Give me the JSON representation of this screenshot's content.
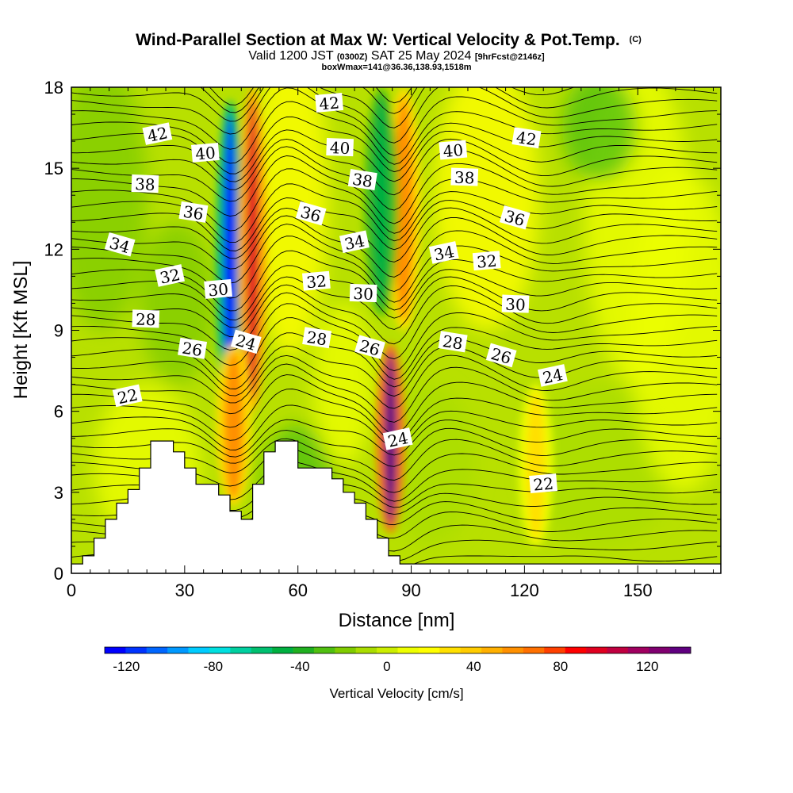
{
  "chart_data": {
    "type": "heatmap",
    "title": "Wind-Parallel Section at Max W: Vertical Velocity & Pot.Temp.",
    "title_mark": "(C)",
    "subtitle_parts": [
      "Valid 1200 JST ",
      "(0300Z)",
      " SAT 25 May 2024 ",
      "[9hrFcst@2146z]"
    ],
    "subtitle2": "boxWmax=141@36.36,138.93,1518m",
    "xlabel": "Distance [nm]",
    "ylabel": "Height [Kft MSL]",
    "xlim": [
      0,
      172
    ],
    "ylim": [
      0,
      18
    ],
    "x_ticks": [
      "0",
      "30",
      "60",
      "90",
      "120",
      "150"
    ],
    "y_ticks": [
      "0",
      "3",
      "6",
      "9",
      "12",
      "15",
      "18"
    ],
    "colorbar": {
      "label": "Vertical Velocity [cm/s]",
      "range": [
        -130,
        140
      ],
      "tick_labels": [
        "-120",
        "-80",
        "-40",
        "0",
        "40",
        "80",
        "120"
      ],
      "colors": [
        "#0000ff",
        "#0033ff",
        "#0066ff",
        "#0099ff",
        "#00ccff",
        "#00e0e0",
        "#00d0a0",
        "#00c070",
        "#00b040",
        "#20b020",
        "#50c010",
        "#80cc00",
        "#aadd00",
        "#ccee00",
        "#eeff00",
        "#ffff00",
        "#ffe000",
        "#ffcc00",
        "#ffb000",
        "#ff9000",
        "#ff7000",
        "#ff4000",
        "#ff0000",
        "#e00020",
        "#c00040",
        "#a00060",
        "#800070",
        "#600080"
      ]
    },
    "updraft_cores": [
      {
        "x": 42,
        "z_range": [
          5.5,
          17.5
        ],
        "w": -125
      },
      {
        "x": 48,
        "z_range": [
          6.0,
          18.0
        ],
        "w": 95
      },
      {
        "x": 43,
        "z_range": [
          2.5,
          8.5
        ],
        "w": 60
      },
      {
        "x": 84.5,
        "z_range": [
          1.5,
          8.5
        ],
        "w": 140
      },
      {
        "x": 88,
        "z_range": [
          9.0,
          18.0
        ],
        "w": 60
      },
      {
        "x": 82,
        "z_range": [
          9.5,
          18.0
        ],
        "w": -50
      },
      {
        "x": 123,
        "z_range": [
          1.0,
          7.0
        ],
        "w": 25
      }
    ],
    "contour_labels": [
      {
        "text": "42",
        "x": 22.8,
        "z": 16.25
      },
      {
        "text": "40",
        "x": 35.5,
        "z": 15.55
      },
      {
        "text": "38",
        "x": 19.5,
        "z": 14.4
      },
      {
        "text": "36",
        "x": 32.3,
        "z": 13.35
      },
      {
        "text": "34",
        "x": 12.8,
        "z": 12.15
      },
      {
        "text": "32",
        "x": 26.1,
        "z": 11.0
      },
      {
        "text": "30",
        "x": 38.9,
        "z": 10.5
      },
      {
        "text": "28",
        "x": 19.7,
        "z": 9.4
      },
      {
        "text": "26",
        "x": 32.0,
        "z": 8.3
      },
      {
        "text": "24",
        "x": 46.2,
        "z": 8.55
      },
      {
        "text": "22",
        "x": 14.9,
        "z": 6.55
      },
      {
        "text": "42",
        "x": 68.3,
        "z": 17.4
      },
      {
        "text": "40",
        "x": 71.1,
        "z": 15.75
      },
      {
        "text": "38",
        "x": 77.1,
        "z": 14.55
      },
      {
        "text": "36",
        "x": 63.4,
        "z": 13.3
      },
      {
        "text": "34",
        "x": 75.0,
        "z": 12.25
      },
      {
        "text": "32",
        "x": 64.9,
        "z": 10.8
      },
      {
        "text": "30",
        "x": 77.3,
        "z": 10.35
      },
      {
        "text": "28",
        "x": 65.0,
        "z": 8.7
      },
      {
        "text": "26",
        "x": 79.0,
        "z": 8.35
      },
      {
        "text": "24",
        "x": 86.5,
        "z": 4.95
      },
      {
        "text": "40",
        "x": 101.1,
        "z": 15.65
      },
      {
        "text": "38",
        "x": 104.1,
        "z": 14.65
      },
      {
        "text": "42",
        "x": 120.5,
        "z": 16.1
      },
      {
        "text": "36",
        "x": 117.4,
        "z": 13.15
      },
      {
        "text": "34",
        "x": 98.7,
        "z": 11.85
      },
      {
        "text": "32",
        "x": 110.0,
        "z": 11.55
      },
      {
        "text": "30",
        "x": 117.6,
        "z": 9.95
      },
      {
        "text": "28",
        "x": 101.0,
        "z": 8.55
      },
      {
        "text": "26",
        "x": 113.8,
        "z": 8.05
      },
      {
        "text": "24",
        "x": 127.5,
        "z": 7.3
      },
      {
        "text": "22",
        "x": 125.0,
        "z": 3.3
      }
    ],
    "terrain": [
      [
        0,
        0.35
      ],
      [
        3,
        0.35
      ],
      [
        3,
        0.65
      ],
      [
        6,
        0.65
      ],
      [
        6,
        1.3
      ],
      [
        9,
        1.3
      ],
      [
        9,
        2.0
      ],
      [
        12,
        2.0
      ],
      [
        12,
        2.6
      ],
      [
        15,
        2.6
      ],
      [
        15,
        3.1
      ],
      [
        18,
        3.1
      ],
      [
        18,
        3.9
      ],
      [
        21,
        3.9
      ],
      [
        21,
        4.9
      ],
      [
        27,
        4.9
      ],
      [
        27,
        4.5
      ],
      [
        30,
        4.5
      ],
      [
        30,
        3.9
      ],
      [
        33,
        3.9
      ],
      [
        33,
        3.3
      ],
      [
        39,
        3.3
      ],
      [
        39,
        2.9
      ],
      [
        42,
        2.9
      ],
      [
        42,
        2.3
      ],
      [
        45,
        2.3
      ],
      [
        45,
        2.0
      ],
      [
        48,
        2.0
      ],
      [
        48,
        3.3
      ],
      [
        51,
        3.3
      ],
      [
        51,
        4.5
      ],
      [
        54,
        4.5
      ],
      [
        54,
        4.9
      ],
      [
        60,
        4.9
      ],
      [
        60,
        3.9
      ],
      [
        69,
        3.9
      ],
      [
        69,
        3.5
      ],
      [
        72,
        3.5
      ],
      [
        72,
        3.0
      ],
      [
        75,
        3.0
      ],
      [
        75,
        2.6
      ],
      [
        78,
        2.6
      ],
      [
        78,
        2.0
      ],
      [
        81,
        2.0
      ],
      [
        81,
        1.3
      ],
      [
        84,
        1.3
      ],
      [
        84,
        0.65
      ],
      [
        87,
        0.65
      ],
      [
        87,
        0.35
      ],
      [
        172,
        0.35
      ]
    ]
  }
}
